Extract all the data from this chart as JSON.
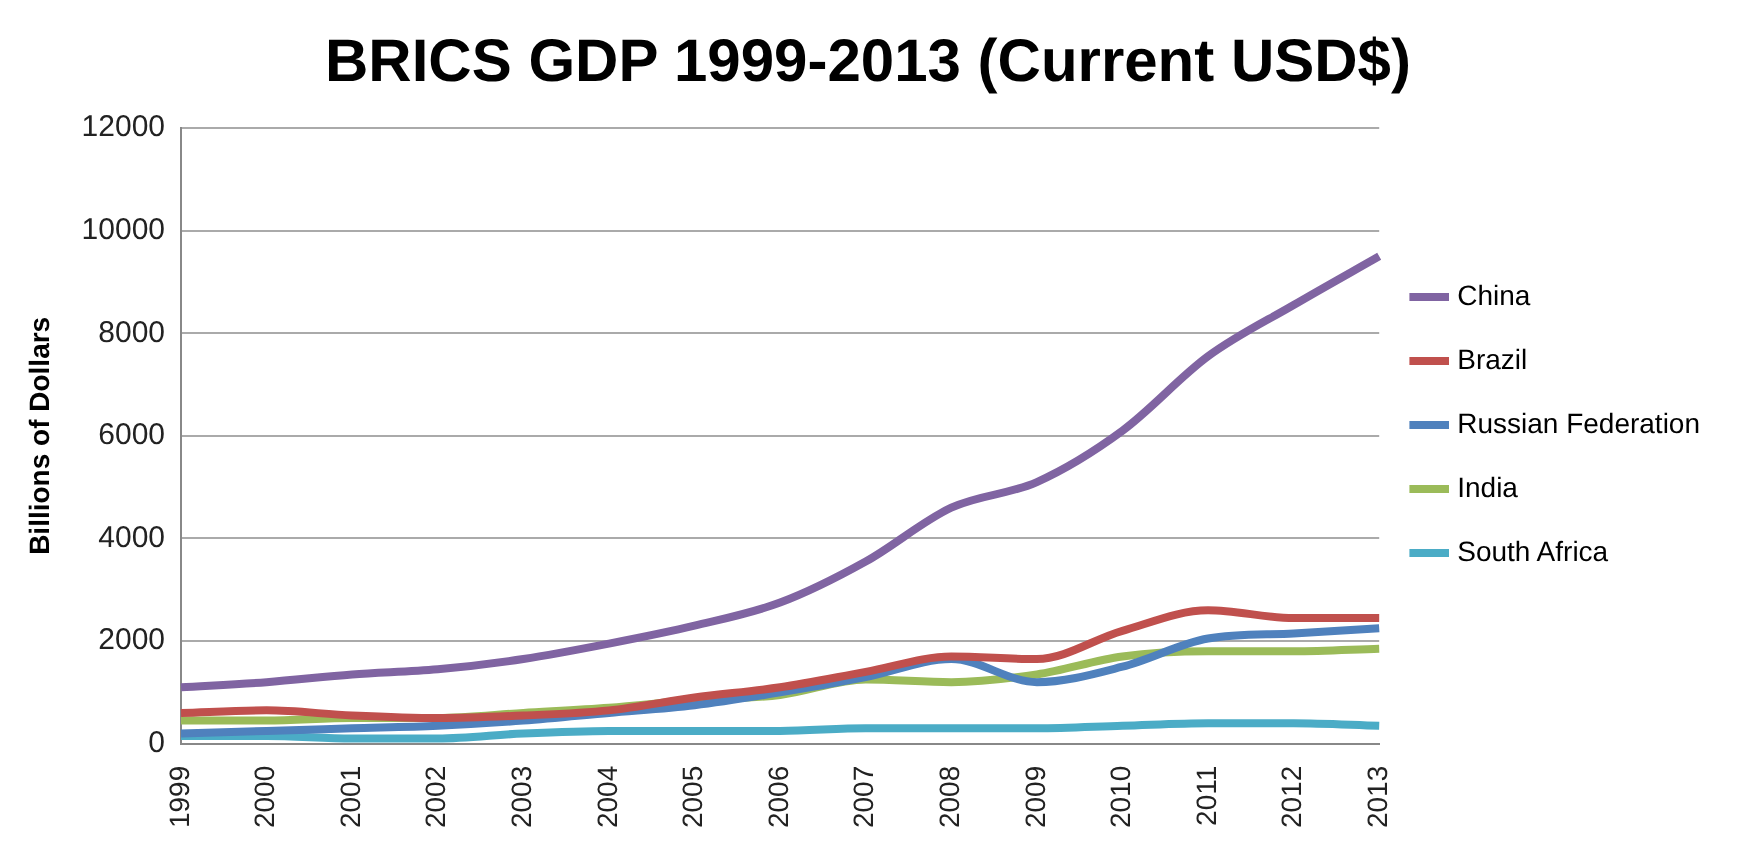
{
  "chart_data": {
    "type": "line",
    "title": "BRICS GDP 1999-2013 (Current USD$)",
    "ylabel": "Billions of Dollars",
    "categories": [
      "1999",
      "2000",
      "2001",
      "2002",
      "2003",
      "2004",
      "2005",
      "2006",
      "2007",
      "2008",
      "2009",
      "2010",
      "2011",
      "2012",
      "2013"
    ],
    "series": [
      {
        "name": "China",
        "color": "#8064a2",
        "values": [
          1100,
          1200,
          1350,
          1450,
          1650,
          1950,
          2300,
          2750,
          3550,
          4600,
          5100,
          6100,
          7550,
          8550,
          9500
        ]
      },
      {
        "name": "Brazil",
        "color": "#c0504d",
        "values": [
          600,
          650,
          550,
          500,
          550,
          650,
          900,
          1100,
          1400,
          1700,
          1650,
          2200,
          2600,
          2450,
          2450
        ]
      },
      {
        "name": "Russian Federation",
        "color": "#4f81bd",
        "values": [
          200,
          250,
          300,
          350,
          450,
          600,
          750,
          1000,
          1300,
          1650,
          1200,
          1500,
          2050,
          2150,
          2250
        ]
      },
      {
        "name": "India",
        "color": "#9bbb59",
        "values": [
          450,
          450,
          500,
          500,
          600,
          700,
          850,
          950,
          1250,
          1200,
          1350,
          1700,
          1800,
          1800,
          1850
        ]
      },
      {
        "name": "South Africa",
        "color": "#4bacc6",
        "values": [
          150,
          150,
          100,
          100,
          200,
          250,
          250,
          250,
          300,
          300,
          300,
          350,
          400,
          400,
          350
        ]
      }
    ],
    "ylim": [
      0,
      12000
    ],
    "yticks": [
      0,
      2000,
      4000,
      6000,
      8000,
      10000,
      12000
    ],
    "grid": "y",
    "legend": "right",
    "marker": "none",
    "line_style": "solid"
  }
}
